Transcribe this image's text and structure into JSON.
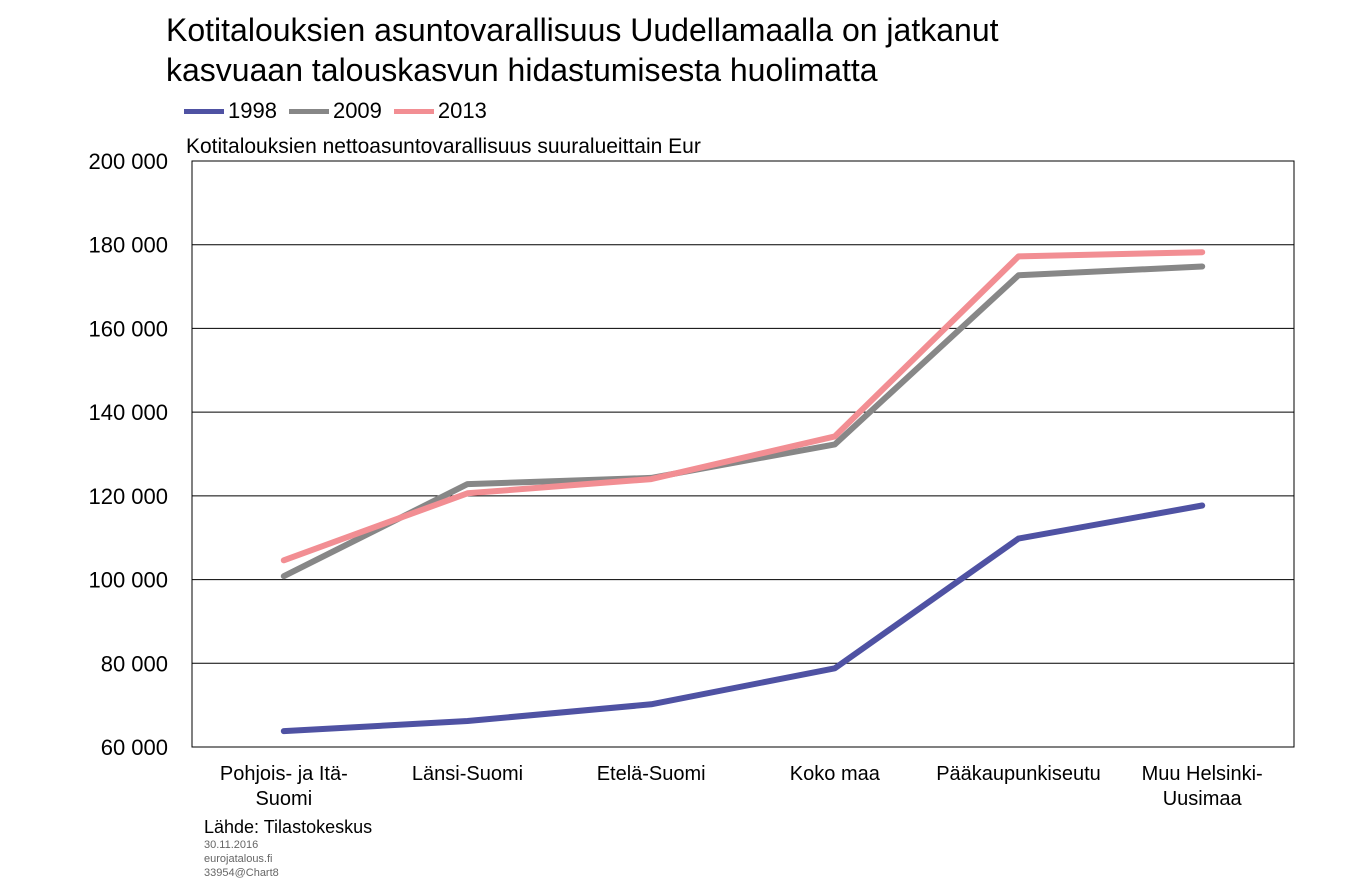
{
  "title_lines": [
    "Kotitalouksien asuntovarallisuus Uudellamaalla on jatkanut",
    "kasvuaan talouskasvun hidastumisesta huolimatta"
  ],
  "footer": {
    "source": "Lähde: Tilastokeskus",
    "date": "30.11.2016",
    "site": "eurojatalous.fi",
    "chart_id": "33954@Chart8"
  },
  "chart_data": {
    "type": "line",
    "title": "Kotitalouksien asuntovarallisuus Uudellamaalla on jatkanut kasvuaan talouskasvun hidastumisesta huolimatta",
    "subtitle": "Kotitalouksien nettoasuntovarallisuus suuralueittain Eur",
    "categories": [
      [
        "Pohjois- ja Itä-",
        "Suomi"
      ],
      [
        "Länsi-Suomi"
      ],
      [
        "Etelä-Suomi"
      ],
      [
        "Koko maa"
      ],
      [
        "Pääkaupunkiseutu"
      ],
      [
        "Muu Helsinki-",
        "Uusimaa"
      ]
    ],
    "series": [
      {
        "name": "1998",
        "color": "#4f52a3",
        "values": [
          63800,
          66200,
          70200,
          78800,
          109800,
          117700
        ]
      },
      {
        "name": "2009",
        "color": "#878787",
        "values": [
          100800,
          122800,
          124300,
          132300,
          172700,
          174800
        ]
      },
      {
        "name": "2013",
        "color": "#f28e93",
        "values": [
          104600,
          120600,
          124000,
          134200,
          177200,
          178200
        ]
      }
    ],
    "ylim": [
      60000,
      200000
    ],
    "yticks": [
      60000,
      80000,
      100000,
      120000,
      140000,
      160000,
      180000,
      200000
    ],
    "ytick_labels": [
      "60 000",
      "80 000",
      "100 000",
      "120 000",
      "140 000",
      "160 000",
      "180 000",
      "200 000"
    ],
    "grid": true,
    "legend_position": "top-left"
  }
}
